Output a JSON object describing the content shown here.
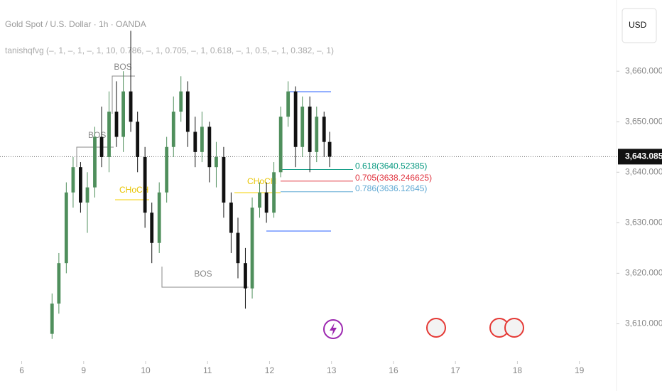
{
  "chart_data": {
    "type": "candlestick",
    "title": "Gold Spot / U.S. Dollar · 1h · OANDA",
    "indicator": "tanishqfvg (–, 1, –, 1, –, 1, 10, 0.786, –, 1, 0.705, –, 1, 0.618, –, 1, 0.5, –, 1, 0.382, –, 1)",
    "currency": "USD",
    "x": [
      0.49,
      0.6,
      0.72,
      0.83,
      0.95,
      1.06,
      1.18,
      1.29,
      1.41,
      1.53,
      1.64,
      1.76,
      1.87,
      1.99,
      2.1,
      2.22,
      2.34,
      2.45,
      2.57,
      2.68,
      2.8,
      2.91,
      3.03,
      3.14,
      3.26,
      3.38,
      3.49,
      3.61,
      3.72,
      3.84,
      3.95,
      4.07,
      4.18,
      4.3,
      4.42,
      4.53,
      4.65,
      4.76,
      4.88,
      4.97
    ],
    "open": [
      3608,
      3614,
      3622,
      3636,
      3641,
      3634,
      3637,
      3647,
      3643,
      3652,
      3647,
      3656,
      3650,
      3643,
      3632,
      3626,
      3636,
      3645,
      3652,
      3656,
      3648,
      3644,
      3649,
      3641,
      3643,
      3634,
      3628,
      3622,
      3617,
      3633,
      3636,
      3632,
      3640,
      3651,
      3656,
      3645,
      3653,
      3644,
      3651,
      3646
    ],
    "high": [
      3616,
      3624,
      3638,
      3643,
      3642,
      3640,
      3649,
      3653,
      3656,
      3658,
      3660,
      3668,
      3652,
      3645,
      3634,
      3638,
      3647,
      3655,
      3659,
      3658,
      3651,
      3652,
      3650,
      3646,
      3645,
      3636,
      3631,
      3625,
      3635,
      3638,
      3638,
      3642,
      3653,
      3658,
      3657,
      3655,
      3655,
      3653,
      3652,
      3648
    ],
    "low": [
      3607,
      3612,
      3620,
      3633,
      3632,
      3628,
      3635,
      3641,
      3640,
      3645,
      3644,
      3648,
      3640,
      3629,
      3622,
      3624,
      3634,
      3643,
      3650,
      3645,
      3641,
      3642,
      3638,
      3637,
      3631,
      3624,
      3619,
      3613,
      3615,
      3631,
      3630,
      3631,
      3639,
      3649,
      3641,
      3643,
      3640,
      3642,
      3643,
      3641
    ],
    "close": [
      3614,
      3622,
      3636,
      3641,
      3634,
      3637,
      3647,
      3643,
      3652,
      3647,
      3656,
      3650,
      3643,
      3632,
      3626,
      3636,
      3645,
      3652,
      3656,
      3648,
      3644,
      3649,
      3641,
      3643,
      3634,
      3628,
      3622,
      3617,
      3633,
      3636,
      3632,
      3640,
      3651,
      3656,
      3645,
      3653,
      3644,
      3651,
      3646,
      3643.085
    ],
    "up_color": "#4f8f5c",
    "down_color": "#111111",
    "xlim": [
      -0.35,
      9.6
    ],
    "xticks": [
      {
        "value": 0,
        "label": "6"
      },
      {
        "value": 1,
        "label": "9"
      },
      {
        "value": 2,
        "label": "10"
      },
      {
        "value": 3,
        "label": "11"
      },
      {
        "value": 4,
        "label": "12"
      },
      {
        "value": 5,
        "label": "13"
      },
      {
        "value": 6,
        "label": "16"
      },
      {
        "value": 7,
        "label": "17"
      },
      {
        "value": 8,
        "label": "18"
      },
      {
        "value": 9,
        "label": "19"
      }
    ],
    "ylim": [
      3602.6,
      3674.1
    ],
    "yticks": [
      {
        "value": 3610,
        "label": "3,610.000"
      },
      {
        "value": 3620,
        "label": "3,620.000"
      },
      {
        "value": 3630,
        "label": "3,630.000"
      },
      {
        "value": 3640,
        "label": "3,640.000"
      },
      {
        "value": 3650,
        "label": "3,650.000"
      },
      {
        "value": 3660,
        "label": "3,660.000"
      }
    ],
    "last_price": {
      "value": 3643.085,
      "label": "3,643.085"
    },
    "fib_levels": [
      {
        "value": 3640.52385,
        "label": "0.618(3640.52385)",
        "color": "#089981"
      },
      {
        "value": 3638.246625,
        "label": "0.705(3638.246625)",
        "color": "#e0343f"
      },
      {
        "value": 3636.12645,
        "label": "0.786(3636.12645)",
        "color": "#5fa8d3"
      }
    ],
    "structure_labels": [
      "BOS",
      "BOS",
      "BOS",
      "CHoCH",
      "CHoCH"
    ]
  }
}
